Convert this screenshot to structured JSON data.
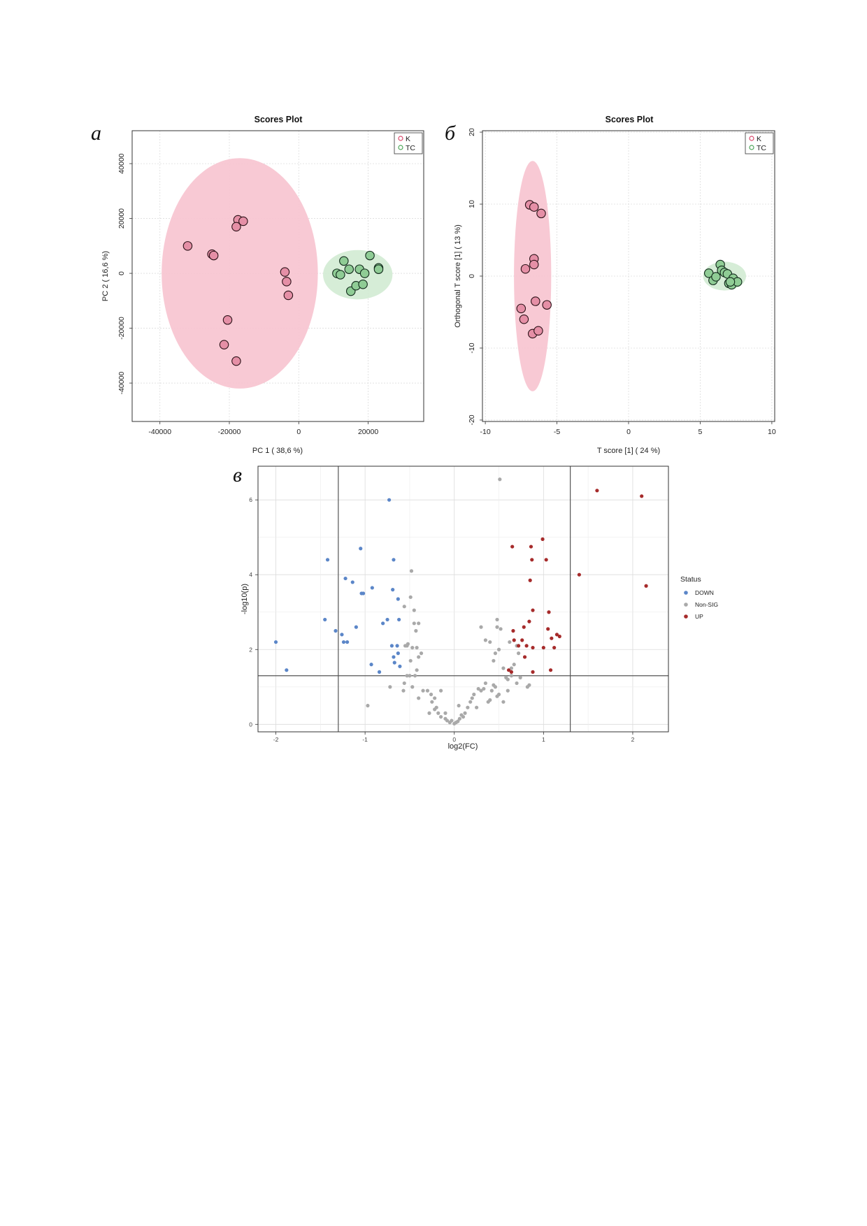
{
  "panels": {
    "a": {
      "letter": "а"
    },
    "b": {
      "letter": "б"
    },
    "c": {
      "letter": "в"
    }
  },
  "chart_data": [
    {
      "id": "pca",
      "type": "scatter",
      "title": "Scores Plot",
      "xlabel": "PC 1 ( 38,6 %)",
      "ylabel": "PC 2 ( 16,6 %)",
      "xlim": [
        -48000,
        36000
      ],
      "ylim": [
        -54000,
        52000
      ],
      "xticks": [
        -40000,
        -20000,
        0,
        20000
      ],
      "xtick_labels": [
        "-40000",
        "-20000",
        "0",
        "20000"
      ],
      "yticks": [
        -40000,
        -20000,
        0,
        20000,
        40000
      ],
      "ytick_labels": [
        "-40000",
        "-20000",
        "0",
        "20000",
        "40000"
      ],
      "ylabels_rotated": true,
      "grid": true,
      "legend_position": "top-right",
      "series": [
        {
          "name": "K",
          "color": "#e58fa6",
          "ellipse": {
            "cx": -17000,
            "cy": 0,
            "rx": 22500,
            "ry": 42000,
            "fill": "#f7c3cf"
          },
          "points": [
            [
              -32000,
              10000
            ],
            [
              -25000,
              7000
            ],
            [
              -24500,
              6500
            ],
            [
              -17500,
              19500
            ],
            [
              -16000,
              19000
            ],
            [
              -18000,
              17000
            ],
            [
              -4000,
              500
            ],
            [
              -3500,
              -3000
            ],
            [
              -3000,
              -8000
            ],
            [
              -20500,
              -17000
            ],
            [
              -21500,
              -26000
            ],
            [
              -18000,
              -32000
            ]
          ]
        },
        {
          "name": "TC",
          "color": "#8fcc95",
          "ellipse": {
            "cx": 17000,
            "cy": -500,
            "rx": 10000,
            "ry": 9000,
            "fill": "#d1ebd3"
          },
          "points": [
            [
              11000,
              0
            ],
            [
              12000,
              -500
            ],
            [
              13000,
              4500
            ],
            [
              14500,
              1500
            ],
            [
              15000,
              -6500
            ],
            [
              16500,
              -4500
            ],
            [
              17500,
              1500
            ],
            [
              18500,
              -4000
            ],
            [
              19000,
              0
            ],
            [
              20500,
              6500
            ],
            [
              23000,
              2000
            ],
            [
              23000,
              1500
            ]
          ]
        }
      ]
    },
    {
      "id": "opls",
      "type": "scatter",
      "title": "Scores Plot",
      "xlabel": "T score [1] ( 24 %)",
      "ylabel": "Orthogonal T score [1] ( 13 %)",
      "xlim": [
        -10.2,
        10.2
      ],
      "ylim": [
        -20.2,
        20.2
      ],
      "xticks": [
        -10,
        -5,
        0,
        5,
        10
      ],
      "xtick_labels": [
        "-10",
        "-5",
        "0",
        "5",
        "10"
      ],
      "yticks": [
        -20,
        -10,
        0,
        10,
        20
      ],
      "ytick_labels": [
        "-20",
        "-10",
        "0",
        "10",
        "20"
      ],
      "ylabels_rotated": true,
      "grid": true,
      "legend_position": "top-right",
      "series": [
        {
          "name": "K",
          "color": "#e58fa6",
          "ellipse": {
            "cx": -6.7,
            "cy": 0,
            "rx": 1.3,
            "ry": 16,
            "fill": "#f7c3cf"
          },
          "points": [
            [
              -6.9,
              9.9
            ],
            [
              -6.6,
              9.6
            ],
            [
              -6.1,
              8.7
            ],
            [
              -6.6,
              2.4
            ],
            [
              -6.6,
              1.6
            ],
            [
              -7.2,
              1.0
            ],
            [
              -7.5,
              -4.5
            ],
            [
              -6.5,
              -3.5
            ],
            [
              -5.7,
              -4.0
            ],
            [
              -7.3,
              -6.0
            ],
            [
              -6.7,
              -8.0
            ],
            [
              -6.3,
              -7.6
            ]
          ]
        },
        {
          "name": "TC",
          "color": "#8fcc95",
          "ellipse": {
            "cx": 6.7,
            "cy": 0,
            "rx": 1.5,
            "ry": 2.0,
            "fill": "#d1ebd3"
          },
          "points": [
            [
              5.6,
              0.4
            ],
            [
              5.9,
              -0.6
            ],
            [
              6.1,
              -0.1
            ],
            [
              6.4,
              1.6
            ],
            [
              6.5,
              0.8
            ],
            [
              6.7,
              0.5
            ],
            [
              6.9,
              0.3
            ],
            [
              7.0,
              -1.0
            ],
            [
              7.2,
              -1.2
            ],
            [
              7.3,
              -0.3
            ],
            [
              7.6,
              -0.8
            ],
            [
              7.1,
              -0.8
            ]
          ]
        }
      ]
    },
    {
      "id": "volcano",
      "type": "scatter",
      "xlabel": "log2(FC)",
      "ylabel": "-log10(p)",
      "xlim": [
        -2.2,
        2.4
      ],
      "ylim": [
        -0.2,
        6.9
      ],
      "xticks": [
        -2,
        -1,
        0,
        1,
        2
      ],
      "xtick_labels": [
        "-2",
        "-1",
        "0",
        "1",
        "2"
      ],
      "yticks": [
        0,
        2,
        4,
        6
      ],
      "ytick_labels": [
        "0",
        "2",
        "4",
        "6"
      ],
      "grid": true,
      "threshold_lines": {
        "x": [
          -1.3,
          1.3
        ],
        "y": [
          1.3
        ]
      },
      "legend_title": "Status",
      "legend_position": "right",
      "series": [
        {
          "name": "DOWN",
          "color": "#5b86c8",
          "points": [
            [
              -2.0,
              2.2
            ],
            [
              -1.88,
              1.45
            ],
            [
              -1.45,
              2.8
            ],
            [
              -1.42,
              4.4
            ],
            [
              -1.33,
              2.5
            ],
            [
              -1.26,
              2.4
            ],
            [
              -1.24,
              2.2
            ],
            [
              -1.22,
              3.9
            ],
            [
              -1.2,
              2.2
            ],
            [
              -1.14,
              3.8
            ],
            [
              -1.1,
              2.6
            ],
            [
              -1.05,
              4.7
            ],
            [
              -1.04,
              3.5
            ],
            [
              -1.02,
              3.5
            ],
            [
              -0.93,
              1.6
            ],
            [
              -0.92,
              3.65
            ],
            [
              -0.84,
              1.4
            ],
            [
              -0.8,
              2.7
            ],
            [
              -0.75,
              2.8
            ],
            [
              -0.73,
              6.0
            ],
            [
              -0.7,
              2.1
            ],
            [
              -0.69,
              3.6
            ],
            [
              -0.68,
              4.4
            ],
            [
              -0.68,
              1.8
            ],
            [
              -0.67,
              1.65
            ],
            [
              -0.64,
              2.1
            ],
            [
              -0.63,
              1.9
            ],
            [
              -0.63,
              3.35
            ],
            [
              -0.62,
              2.8
            ],
            [
              -0.61,
              1.55
            ]
          ]
        },
        {
          "name": "Non-SIG",
          "color": "#a9a9a9",
          "points": [
            [
              0.51,
              6.55
            ],
            [
              -0.48,
              4.1
            ],
            [
              -0.49,
              3.4
            ],
            [
              -0.45,
              3.05
            ],
            [
              -0.56,
              3.15
            ],
            [
              -0.45,
              2.7
            ],
            [
              -0.4,
              2.7
            ],
            [
              -0.43,
              2.5
            ],
            [
              -0.47,
              2.05
            ],
            [
              -0.53,
              2.1
            ],
            [
              -0.55,
              2.1
            ],
            [
              -0.52,
              2.15
            ],
            [
              -0.49,
              1.7
            ],
            [
              -0.4,
              1.8
            ],
            [
              -0.42,
              2.05
            ],
            [
              -0.37,
              1.9
            ],
            [
              -0.42,
              1.45
            ],
            [
              -0.44,
              1.3
            ],
            [
              -0.5,
              1.3
            ],
            [
              -0.53,
              1.3
            ],
            [
              -0.56,
              1.1
            ],
            [
              -0.47,
              1.0
            ],
            [
              -0.57,
              0.9
            ],
            [
              -0.72,
              1.0
            ],
            [
              -0.97,
              0.5
            ],
            [
              -0.4,
              0.7
            ],
            [
              -0.35,
              0.9
            ],
            [
              -0.3,
              0.9
            ],
            [
              -0.26,
              0.8
            ],
            [
              -0.25,
              0.6
            ],
            [
              -0.22,
              0.7
            ],
            [
              -0.2,
              0.45
            ],
            [
              -0.18,
              0.3
            ],
            [
              -0.15,
              0.2
            ],
            [
              -0.1,
              0.3
            ],
            [
              -0.1,
              0.15
            ],
            [
              -0.08,
              0.1
            ],
            [
              -0.05,
              0.05
            ],
            [
              -0.03,
              0.1
            ],
            [
              0.0,
              0.02
            ],
            [
              0.02,
              0.05
            ],
            [
              0.04,
              0.08
            ],
            [
              0.06,
              0.15
            ],
            [
              0.08,
              0.25
            ],
            [
              0.1,
              0.2
            ],
            [
              0.12,
              0.3
            ],
            [
              0.15,
              0.45
            ],
            [
              0.18,
              0.6
            ],
            [
              0.2,
              0.7
            ],
            [
              0.22,
              0.8
            ],
            [
              0.27,
              0.95
            ],
            [
              0.3,
              0.9
            ],
            [
              0.33,
              0.95
            ],
            [
              0.35,
              1.1
            ],
            [
              0.38,
              0.6
            ],
            [
              0.4,
              0.65
            ],
            [
              0.42,
              0.9
            ],
            [
              0.44,
              1.05
            ],
            [
              0.46,
              1.0
            ],
            [
              0.48,
              0.75
            ],
            [
              0.5,
              0.8
            ],
            [
              0.55,
              0.6
            ],
            [
              0.58,
              1.25
            ],
            [
              0.6,
              0.9
            ],
            [
              0.64,
              1.3
            ],
            [
              0.7,
              1.1
            ],
            [
              0.74,
              1.25
            ],
            [
              0.82,
              1.0
            ],
            [
              0.84,
              1.05
            ],
            [
              0.3,
              2.6
            ],
            [
              0.35,
              2.25
            ],
            [
              0.4,
              2.2
            ],
            [
              0.44,
              1.7
            ],
            [
              0.46,
              1.9
            ],
            [
              0.48,
              2.6
            ],
            [
              0.48,
              2.8
            ],
            [
              0.5,
              2.0
            ],
            [
              0.52,
              2.55
            ],
            [
              0.55,
              1.5
            ],
            [
              0.6,
              1.2
            ],
            [
              0.62,
              2.2
            ],
            [
              0.64,
              1.5
            ],
            [
              0.67,
              1.6
            ],
            [
              0.7,
              2.1
            ],
            [
              0.72,
              1.9
            ],
            [
              -0.15,
              0.9
            ],
            [
              -0.22,
              0.4
            ],
            [
              0.05,
              0.5
            ],
            [
              -0.28,
              0.3
            ],
            [
              0.25,
              0.45
            ]
          ]
        },
        {
          "name": "UP",
          "color": "#a62b2b",
          "points": [
            [
              0.61,
              1.45
            ],
            [
              0.64,
              1.4
            ],
            [
              0.65,
              4.75
            ],
            [
              0.66,
              2.5
            ],
            [
              0.67,
              2.25
            ],
            [
              0.72,
              2.1
            ],
            [
              0.76,
              2.25
            ],
            [
              0.78,
              2.6
            ],
            [
              0.79,
              1.8
            ],
            [
              0.81,
              2.1
            ],
            [
              0.84,
              2.75
            ],
            [
              0.85,
              3.85
            ],
            [
              0.86,
              4.75
            ],
            [
              0.87,
              4.4
            ],
            [
              0.88,
              1.4
            ],
            [
              0.88,
              2.05
            ],
            [
              0.88,
              3.05
            ],
            [
              0.99,
              4.95
            ],
            [
              1.0,
              2.05
            ],
            [
              1.03,
              4.4
            ],
            [
              1.05,
              2.55
            ],
            [
              1.06,
              3.0
            ],
            [
              1.08,
              1.45
            ],
            [
              1.09,
              2.3
            ],
            [
              1.12,
              2.05
            ],
            [
              1.15,
              2.4
            ],
            [
              1.18,
              2.35
            ],
            [
              1.4,
              4.0
            ],
            [
              1.6,
              6.25
            ],
            [
              2.1,
              6.1
            ],
            [
              2.15,
              3.7
            ]
          ]
        }
      ]
    }
  ]
}
